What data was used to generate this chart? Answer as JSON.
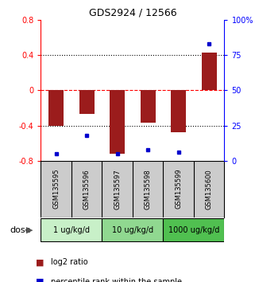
{
  "title": "GDS2924 / 12566",
  "samples": [
    "GSM135595",
    "GSM135596",
    "GSM135597",
    "GSM135598",
    "GSM135599",
    "GSM135600"
  ],
  "log2_ratio": [
    -0.4,
    -0.27,
    -0.72,
    -0.37,
    -0.48,
    0.43
  ],
  "percentile_rank": [
    5,
    18,
    5,
    8,
    6,
    83
  ],
  "ylim_left": [
    -0.8,
    0.8
  ],
  "ylim_right": [
    0,
    100
  ],
  "yticks_left": [
    -0.8,
    -0.4,
    0,
    0.4,
    0.8
  ],
  "yticks_right": [
    0,
    25,
    50,
    75,
    100
  ],
  "ytick_labels_right": [
    "0",
    "25",
    "50",
    "75",
    "100%"
  ],
  "bar_color": "#9B1C1C",
  "dot_color": "#0000CD",
  "dose_groups": [
    {
      "label": "1 ug/kg/d",
      "samples": [
        "GSM135595",
        "GSM135596"
      ],
      "color": "#c8f0c8"
    },
    {
      "label": "10 ug/kg/d",
      "samples": [
        "GSM135597",
        "GSM135598"
      ],
      "color": "#90d890"
    },
    {
      "label": "1000 ug/kg/d",
      "samples": [
        "GSM135599",
        "GSM135600"
      ],
      "color": "#50c050"
    }
  ],
  "dose_label": "dose",
  "legend_bar_label": "log2 ratio",
  "legend_dot_label": "percentile rank within the sample",
  "zero_line_color": "#ff0000",
  "hline_color": "#000000",
  "background_color": "#ffffff",
  "plot_bg_color": "#ffffff",
  "sample_bg_color": "#cccccc"
}
